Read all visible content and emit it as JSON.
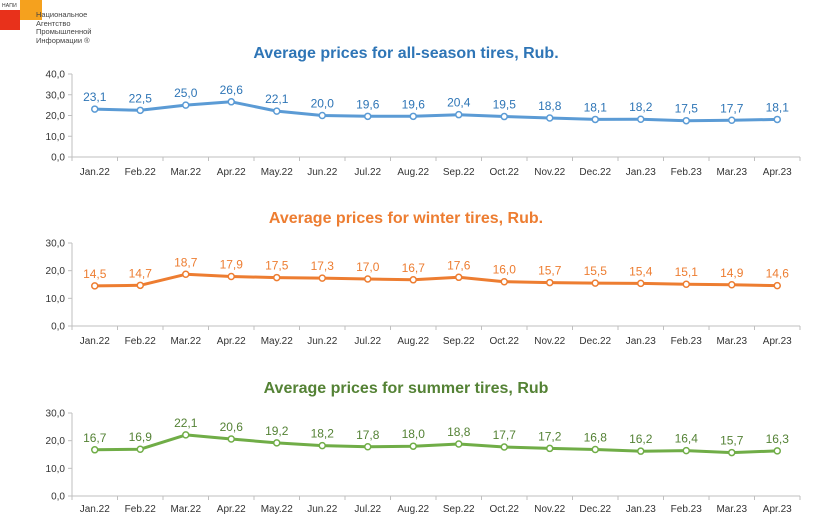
{
  "logo": {
    "abbr": "НАПИ",
    "name_lines": [
      "Национальное",
      "Агентство",
      "Промышленной",
      "Информации ®"
    ]
  },
  "chart_data": [
    {
      "type": "line",
      "title": "Average prices for all-season tires, Rub.",
      "categories": [
        "Jan.22",
        "Feb.22",
        "Mar.22",
        "Apr.22",
        "May.22",
        "Jun.22",
        "Jul.22",
        "Aug.22",
        "Sep.22",
        "Oct.22",
        "Nov.22",
        "Dec.22",
        "Jan.23",
        "Feb.23",
        "Mar.23",
        "Apr.23"
      ],
      "values": [
        23.1,
        22.5,
        25.0,
        26.6,
        22.1,
        20.0,
        19.6,
        19.6,
        20.4,
        19.5,
        18.8,
        18.1,
        18.2,
        17.5,
        17.7,
        18.1
      ],
      "labels": [
        "23,1",
        "22,5",
        "25,0",
        "26,6",
        "22,1",
        "20,0",
        "19,6",
        "19,6",
        "20,4",
        "19,5",
        "18,8",
        "18,1",
        "18,2",
        "17,5",
        "17,7",
        "18,1"
      ],
      "yticks": [
        "0,0",
        "10,0",
        "20,0",
        "30,0",
        "40,0"
      ],
      "ylim": [
        0,
        40
      ],
      "color": "#5b9bd5",
      "title_color": "#2e75b6",
      "label_color": "#2e75b6"
    },
    {
      "type": "line",
      "title": "Average prices for winter tires, Rub.",
      "categories": [
        "Jan.22",
        "Feb.22",
        "Mar.22",
        "Apr.22",
        "May.22",
        "Jun.22",
        "Jul.22",
        "Aug.22",
        "Sep.22",
        "Oct.22",
        "Nov.22",
        "Dec.22",
        "Jan.23",
        "Feb.23",
        "Mar.23",
        "Apr.23"
      ],
      "values": [
        14.5,
        14.7,
        18.7,
        17.9,
        17.5,
        17.3,
        17.0,
        16.7,
        17.6,
        16.0,
        15.7,
        15.5,
        15.4,
        15.1,
        14.9,
        14.6
      ],
      "labels": [
        "14,5",
        "14,7",
        "18,7",
        "17,9",
        "17,5",
        "17,3",
        "17,0",
        "16,7",
        "17,6",
        "16,0",
        "15,7",
        "15,5",
        "15,4",
        "15,1",
        "14,9",
        "14,6"
      ],
      "yticks": [
        "0,0",
        "10,0",
        "20,0",
        "30,0"
      ],
      "ylim": [
        0,
        30
      ],
      "color": "#ed7d31",
      "title_color": "#ed7d31",
      "label_color": "#ed7d31"
    },
    {
      "type": "line",
      "title": "Average prices for summer tires, Rub",
      "categories": [
        "Jan.22",
        "Feb.22",
        "Mar.22",
        "Apr.22",
        "May.22",
        "Jun.22",
        "Jul.22",
        "Aug.22",
        "Sep.22",
        "Oct.22",
        "Nov.22",
        "Dec.22",
        "Jan.23",
        "Feb.23",
        "Mar.23",
        "Apr.23"
      ],
      "values": [
        16.7,
        16.9,
        22.1,
        20.6,
        19.2,
        18.2,
        17.8,
        18.0,
        18.8,
        17.7,
        17.2,
        16.8,
        16.2,
        16.4,
        15.7,
        16.3
      ],
      "labels": [
        "16,7",
        "16,9",
        "22,1",
        "20,6",
        "19,2",
        "18,2",
        "17,8",
        "18,0",
        "18,8",
        "17,7",
        "17,2",
        "16,8",
        "16,2",
        "16,4",
        "15,7",
        "16,3"
      ],
      "yticks": [
        "0,0",
        "10,0",
        "20,0",
        "30,0"
      ],
      "ylim": [
        0,
        30
      ],
      "color": "#70ad47",
      "title_color": "#548235",
      "label_color": "#548235"
    }
  ]
}
